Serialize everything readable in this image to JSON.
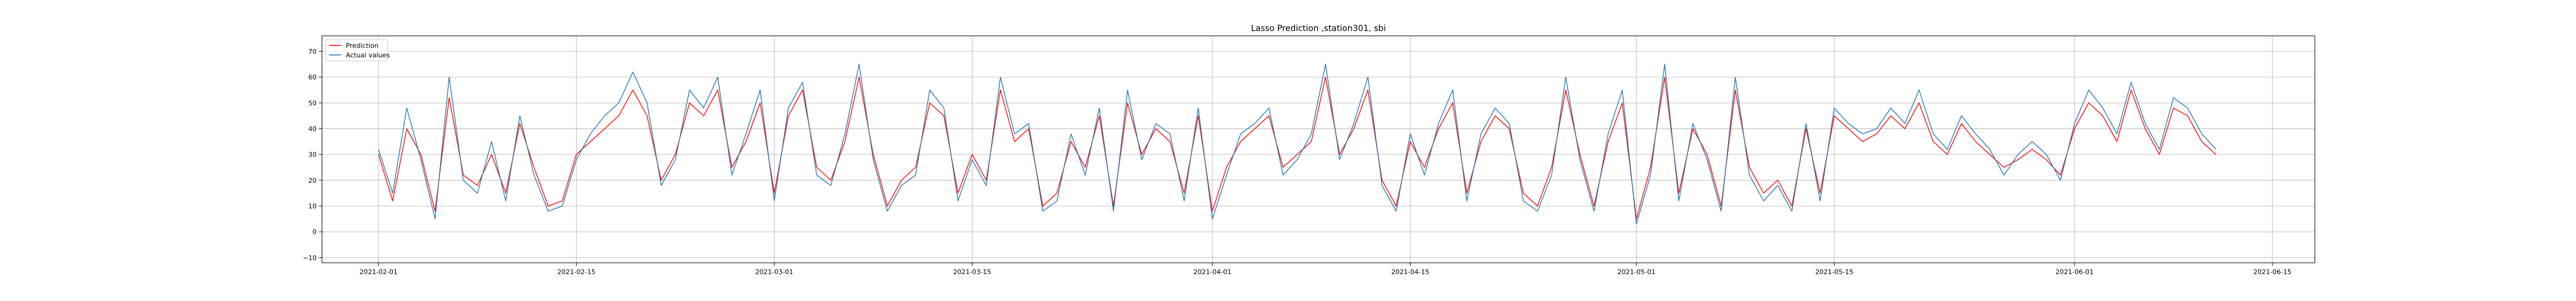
{
  "chart_data": {
    "type": "line",
    "title": "Lasso Prediction ,station301, sbi",
    "xlabel": "",
    "ylabel": "",
    "x_range": [
      "2021-01-28",
      "2021-06-18"
    ],
    "ylim": [
      -12,
      76
    ],
    "grid": true,
    "legend": "upper left",
    "x_ticks": [
      "2021-02-01",
      "2021-02-15",
      "2021-03-01",
      "2021-03-15",
      "2021-04-01",
      "2021-04-15",
      "2021-05-01",
      "2021-05-15",
      "2021-06-01",
      "2021-06-15"
    ],
    "y_ticks": [
      -10,
      0,
      10,
      20,
      30,
      40,
      50,
      60,
      70
    ],
    "x": [
      "2021-02-01",
      "2021-02-02",
      "2021-02-03",
      "2021-02-04",
      "2021-02-05",
      "2021-02-06",
      "2021-02-07",
      "2021-02-08",
      "2021-02-09",
      "2021-02-10",
      "2021-02-11",
      "2021-02-12",
      "2021-02-13",
      "2021-02-14",
      "2021-02-15",
      "2021-02-16",
      "2021-02-17",
      "2021-02-18",
      "2021-02-19",
      "2021-02-20",
      "2021-02-21",
      "2021-02-22",
      "2021-02-23",
      "2021-02-24",
      "2021-02-25",
      "2021-02-26",
      "2021-02-27",
      "2021-02-28",
      "2021-03-01",
      "2021-03-02",
      "2021-03-03",
      "2021-03-04",
      "2021-03-05",
      "2021-03-06",
      "2021-03-07",
      "2021-03-08",
      "2021-03-09",
      "2021-03-10",
      "2021-03-11",
      "2021-03-12",
      "2021-03-13",
      "2021-03-14",
      "2021-03-15",
      "2021-03-16",
      "2021-03-17",
      "2021-03-18",
      "2021-03-19",
      "2021-03-20",
      "2021-03-21",
      "2021-03-22",
      "2021-03-23",
      "2021-03-24",
      "2021-03-25",
      "2021-03-26",
      "2021-03-27",
      "2021-03-28",
      "2021-03-29",
      "2021-03-30",
      "2021-03-31",
      "2021-04-01",
      "2021-04-02",
      "2021-04-03",
      "2021-04-04",
      "2021-04-05",
      "2021-04-06",
      "2021-04-07",
      "2021-04-08",
      "2021-04-09",
      "2021-04-10",
      "2021-04-11",
      "2021-04-12",
      "2021-04-13",
      "2021-04-14",
      "2021-04-15",
      "2021-04-16",
      "2021-04-17",
      "2021-04-18",
      "2021-04-19",
      "2021-04-20",
      "2021-04-21",
      "2021-04-22",
      "2021-04-23",
      "2021-04-24",
      "2021-04-25",
      "2021-04-26",
      "2021-04-27",
      "2021-04-28",
      "2021-04-29",
      "2021-04-30",
      "2021-05-01",
      "2021-05-02",
      "2021-05-03",
      "2021-05-04",
      "2021-05-05",
      "2021-05-06",
      "2021-05-07",
      "2021-05-08",
      "2021-05-09",
      "2021-05-10",
      "2021-05-11",
      "2021-05-12",
      "2021-05-13",
      "2021-05-14",
      "2021-05-15",
      "2021-05-16",
      "2021-05-17",
      "2021-05-18",
      "2021-05-19",
      "2021-05-20",
      "2021-05-21",
      "2021-05-22",
      "2021-05-23",
      "2021-05-24",
      "2021-05-25",
      "2021-05-26",
      "2021-05-27",
      "2021-05-28",
      "2021-05-29",
      "2021-05-30",
      "2021-05-31",
      "2021-06-01",
      "2021-06-02",
      "2021-06-03",
      "2021-06-04",
      "2021-06-05",
      "2021-06-06",
      "2021-06-07",
      "2021-06-08",
      "2021-06-09",
      "2021-06-10",
      "2021-06-11"
    ],
    "series": [
      {
        "name": "Prediction",
        "color": "#ff0000",
        "values": [
          30,
          12,
          40,
          30,
          8,
          52,
          22,
          18,
          30,
          15,
          42,
          25,
          10,
          12,
          30,
          35,
          40,
          45,
          55,
          45,
          20,
          30,
          50,
          45,
          55,
          25,
          35,
          50,
          15,
          45,
          55,
          25,
          20,
          35,
          60,
          30,
          10,
          20,
          25,
          50,
          45,
          15,
          30,
          20,
          55,
          35,
          40,
          10,
          15,
          35,
          25,
          45,
          10,
          50,
          30,
          40,
          35,
          15,
          45,
          8,
          25,
          35,
          40,
          45,
          25,
          30,
          35,
          60,
          30,
          40,
          55,
          20,
          10,
          35,
          25,
          40,
          50,
          15,
          35,
          45,
          40,
          15,
          10,
          25,
          55,
          30,
          10,
          35,
          50,
          5,
          25,
          60,
          15,
          40,
          30,
          10,
          55,
          25,
          15,
          20,
          10,
          40,
          15,
          45,
          40,
          35,
          38,
          45,
          40,
          50,
          35,
          30,
          42,
          35,
          30,
          25,
          28,
          32,
          28,
          22,
          40,
          50,
          45,
          35,
          55,
          40,
          30,
          48,
          45,
          35,
          30
        ]
      },
      {
        "name": "Actual values",
        "color": "#1f77b4",
        "values": [
          32,
          15,
          48,
          28,
          5,
          60,
          20,
          15,
          35,
          12,
          45,
          22,
          8,
          10,
          28,
          38,
          45,
          50,
          62,
          50,
          18,
          28,
          55,
          48,
          60,
          22,
          38,
          55,
          12,
          48,
          58,
          22,
          18,
          38,
          65,
          28,
          8,
          18,
          22,
          55,
          48,
          12,
          28,
          18,
          60,
          38,
          42,
          8,
          12,
          38,
          22,
          48,
          8,
          55,
          28,
          42,
          38,
          12,
          48,
          5,
          22,
          38,
          42,
          48,
          22,
          28,
          38,
          65,
          28,
          42,
          60,
          18,
          8,
          38,
          22,
          42,
          55,
          12,
          38,
          48,
          42,
          12,
          8,
          22,
          60,
          28,
          8,
          38,
          55,
          3,
          22,
          65,
          12,
          42,
          28,
          8,
          60,
          22,
          12,
          18,
          8,
          42,
          12,
          48,
          42,
          38,
          40,
          48,
          42,
          55,
          38,
          32,
          45,
          38,
          32,
          22,
          30,
          35,
          30,
          20,
          42,
          55,
          48,
          38,
          58,
          42,
          32,
          52,
          48,
          38,
          32
        ]
      }
    ]
  }
}
